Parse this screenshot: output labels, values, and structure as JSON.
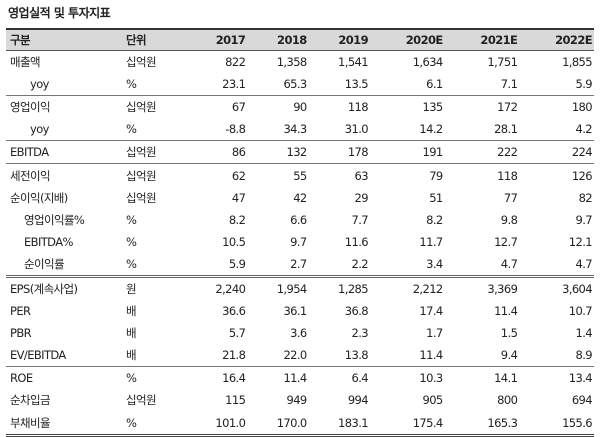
{
  "title": "영업실적 및 투자지표",
  "headers": [
    "구분",
    "단위",
    "2017",
    "2018",
    "2019",
    "2020E",
    "2021E",
    "2022E"
  ],
  "rows": [
    {
      "label": "매출액",
      "unit": "십억원",
      "values": [
        "822",
        "1,358",
        "1,541",
        "1,634",
        "1,751",
        "1,855"
      ]
    },
    {
      "label": "yoy",
      "unit": "%",
      "values": [
        "23.1",
        "65.3",
        "13.5",
        "6.1",
        "7.1",
        "5.9"
      ]
    },
    {
      "label": "영업이익",
      "unit": "십억원",
      "values": [
        "67",
        "90",
        "118",
        "135",
        "172",
        "180"
      ]
    },
    {
      "label": "yoy",
      "unit": "%",
      "values": [
        "-8.8",
        "34.3",
        "31.0",
        "14.2",
        "28.1",
        "4.2"
      ]
    },
    {
      "label": "EBITDA",
      "unit": "십억원",
      "values": [
        "86",
        "132",
        "178",
        "191",
        "222",
        "224"
      ]
    },
    {
      "label": "세전이익",
      "unit": "십억원",
      "values": [
        "62",
        "55",
        "63",
        "79",
        "118",
        "126"
      ]
    },
    {
      "label": "순이익(지배)",
      "unit": "십억원",
      "values": [
        "47",
        "42",
        "29",
        "51",
        "77",
        "82"
      ]
    },
    {
      "label": "영업이익률%",
      "unit": "%",
      "values": [
        "8.2",
        "6.6",
        "7.7",
        "8.2",
        "9.8",
        "9.7"
      ]
    },
    {
      "label": "EBITDA%",
      "unit": "%",
      "values": [
        "10.5",
        "9.7",
        "11.6",
        "11.7",
        "12.7",
        "12.1"
      ]
    },
    {
      "label": "순이익률",
      "unit": "%",
      "values": [
        "5.9",
        "2.7",
        "2.2",
        "3.4",
        "4.7",
        "4.7"
      ]
    },
    {
      "label": "EPS(계속사업)",
      "unit": "원",
      "values": [
        "2,240",
        "1,954",
        "1,285",
        "2,212",
        "3,369",
        "3,604"
      ]
    },
    {
      "label": "PER",
      "unit": "배",
      "values": [
        "36.6",
        "36.1",
        "36.8",
        "17.4",
        "11.4",
        "10.7"
      ]
    },
    {
      "label": "PBR",
      "unit": "배",
      "values": [
        "5.7",
        "3.6",
        "2.3",
        "1.7",
        "1.5",
        "1.4"
      ]
    },
    {
      "label": "EV/EBITDA",
      "unit": "배",
      "values": [
        "21.8",
        "22.0",
        "13.8",
        "11.4",
        "9.4",
        "8.9"
      ]
    },
    {
      "label": "ROE",
      "unit": "%",
      "values": [
        "16.4",
        "11.4",
        "6.4",
        "10.3",
        "14.1",
        "13.4"
      ]
    },
    {
      "label": "순차입금",
      "unit": "십억원",
      "values": [
        "115",
        "949",
        "994",
        "905",
        "800",
        "694"
      ]
    },
    {
      "label": "부채비율",
      "unit": "%",
      "values": [
        "101.0",
        "170.0",
        "183.1",
        "175.4",
        "165.3",
        "155.6"
      ]
    }
  ]
}
